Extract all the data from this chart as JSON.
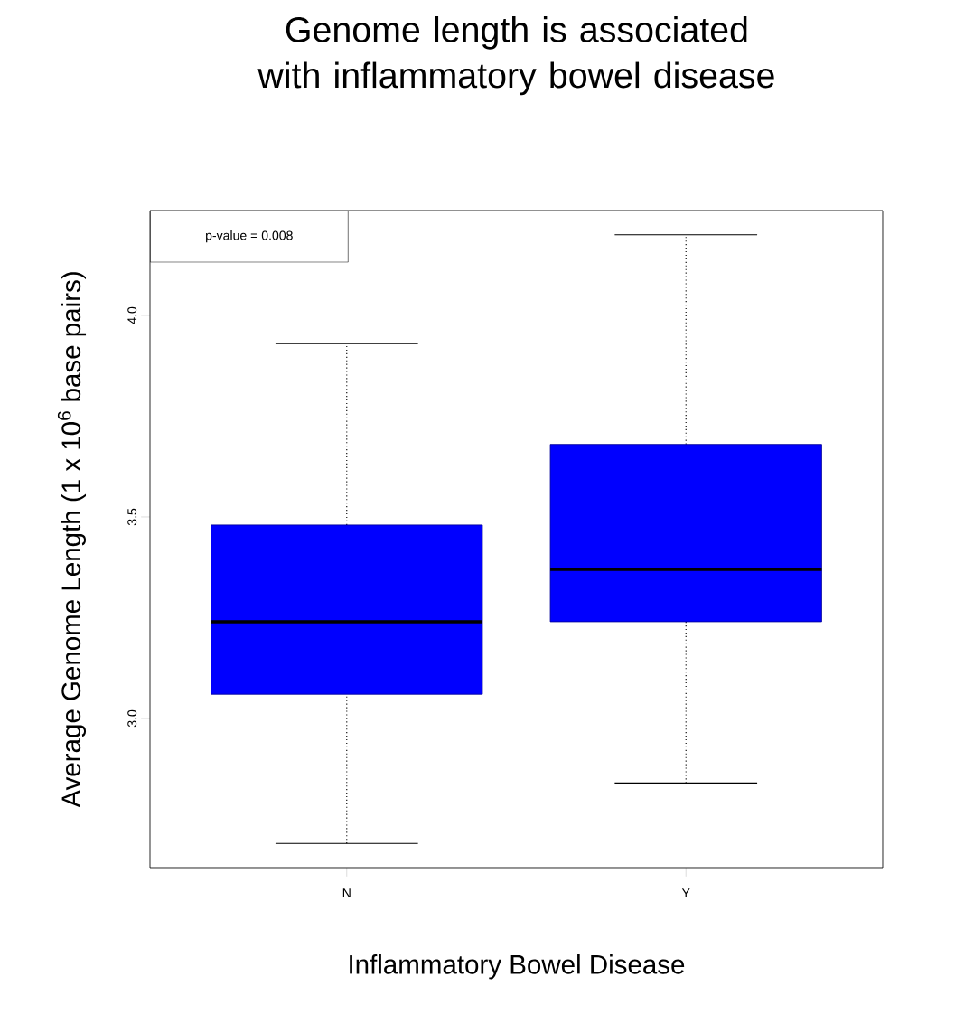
{
  "chart_data": {
    "type": "box",
    "title": "Genome length is associated with inflammatory bowel disease",
    "xlabel": "Inflammatory Bowel Disease",
    "ylabel": "Average Genome Length (1 x 10$^{6}$ base pairs)",
    "categories": [
      "N",
      "Y"
    ],
    "boxes": [
      {
        "low": 2.69,
        "q1": 3.06,
        "median": 3.24,
        "q3": 3.48,
        "high": 3.93
      },
      {
        "low": 2.84,
        "q1": 3.24,
        "median": 3.37,
        "q3": 3.68,
        "high": 4.2
      }
    ],
    "color": "#0000ff",
    "ylim": [
      2.63,
      4.26
    ],
    "yticks": [
      {
        "value": 3,
        "label": "3.0"
      },
      {
        "value": 3.5,
        "label": "3.5"
      },
      {
        "value": 4,
        "label": "4.0"
      }
    ],
    "annotations": [
      "p-value = 0.008"
    ]
  }
}
